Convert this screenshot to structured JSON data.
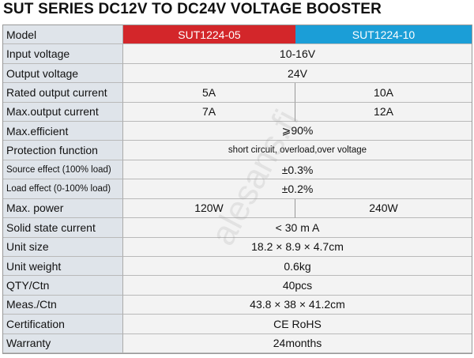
{
  "title": "SUT SERIES DC12V TO DC24V VOLTAGE BOOSTER",
  "watermark": "alesans.fi",
  "table": {
    "header": [
      "Model",
      "SUT1224-05",
      "SUT1224-10"
    ],
    "rows": [
      [
        "Input voltage",
        "10-16V"
      ],
      [
        "Output voltage",
        "24V"
      ],
      [
        "Rated output current",
        "5A",
        "10A"
      ],
      [
        "Max.output current",
        "7A",
        "12A"
      ],
      [
        "Max.efficient",
        "⩾90%"
      ],
      [
        "Protection function",
        "short circuit, overload,over voltage"
      ],
      [
        "Source effect (100% load)",
        "±0.3%"
      ],
      [
        "Load effect (0-100% load)",
        "±0.2%"
      ],
      [
        "Max. power",
        "120W",
        "240W"
      ],
      [
        "Solid state current",
        "< 30 m A"
      ],
      [
        "Unit size",
        "18.2 × 8.9 × 4.7cm"
      ],
      [
        "Unit weight",
        "0.6kg"
      ],
      [
        "QTY/Ctn",
        "40pcs"
      ],
      [
        "Meas./Ctn",
        "43.8 × 38 × 41.2cm"
      ],
      [
        "Certification",
        "CE RoHS"
      ],
      [
        "Warranty",
        "24months"
      ]
    ]
  }
}
